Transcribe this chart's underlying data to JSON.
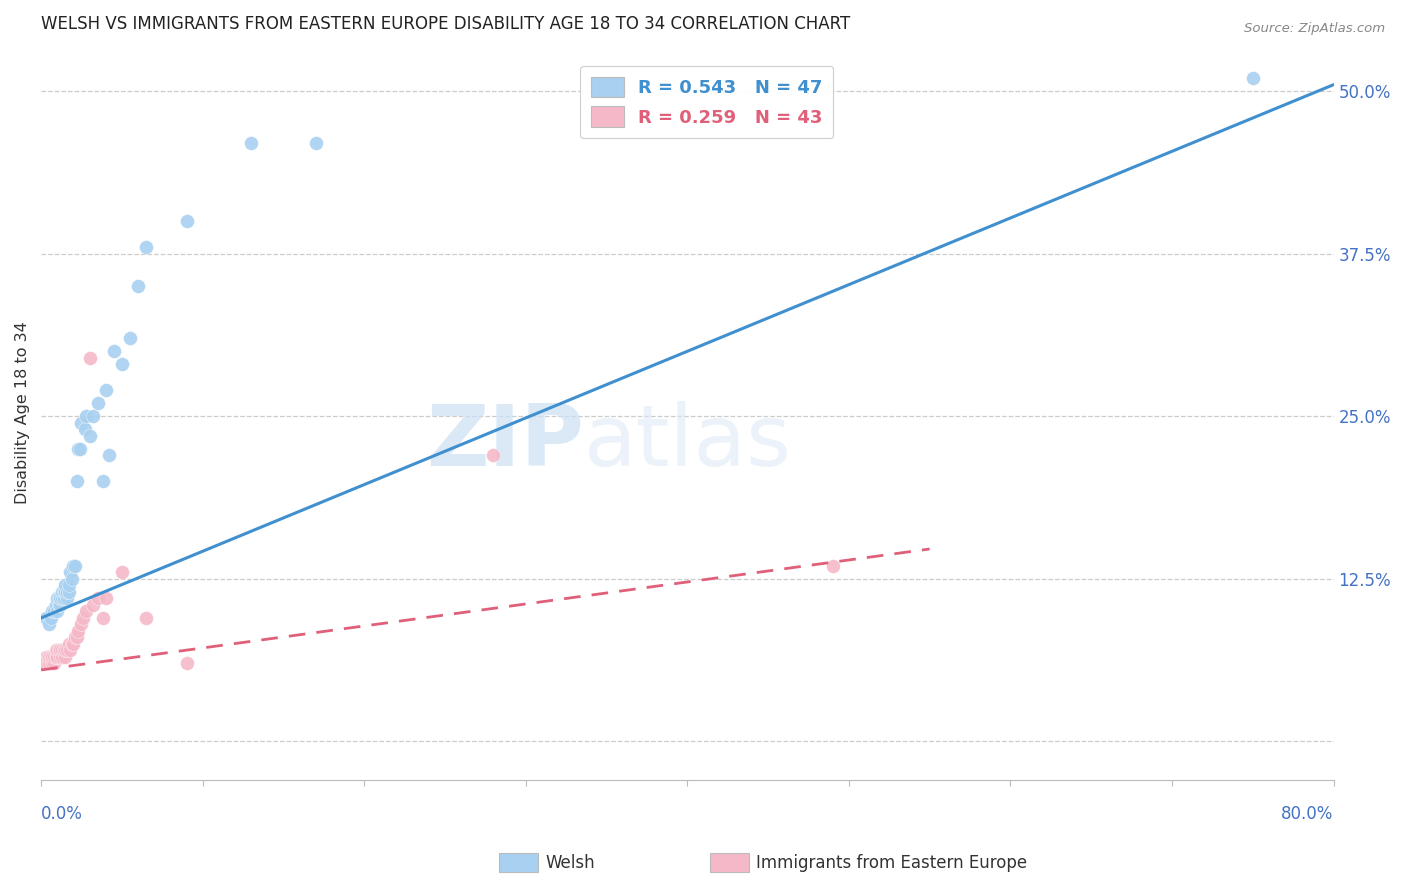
{
  "title": "WELSH VS IMMIGRANTS FROM EASTERN EUROPE DISABILITY AGE 18 TO 34 CORRELATION CHART",
  "source": "Source: ZipAtlas.com",
  "ylabel": "Disability Age 18 to 34",
  "yticks": [
    0.0,
    0.125,
    0.25,
    0.375,
    0.5
  ],
  "ytick_labels": [
    "",
    "12.5%",
    "25.0%",
    "37.5%",
    "50.0%"
  ],
  "xmin": 0.0,
  "xmax": 0.8,
  "ymin": -0.03,
  "ymax": 0.535,
  "welsh_R": 0.543,
  "welsh_N": 47,
  "immigrant_R": 0.259,
  "immigrant_N": 43,
  "welsh_color": "#a8d0f0",
  "immigrant_color": "#f5b8c8",
  "welsh_line_color": "#4090d0",
  "immigrant_line_color": "#e0607a",
  "watermark_zip": "ZIP",
  "watermark_atlas": "atlas",
  "legend_welsh_label": "Welsh",
  "legend_immigrant_label": "Immigrants from Eastern Europe",
  "welsh_scatter_x": [
    0.003,
    0.005,
    0.006,
    0.007,
    0.008,
    0.009,
    0.01,
    0.01,
    0.011,
    0.011,
    0.012,
    0.012,
    0.013,
    0.013,
    0.014,
    0.014,
    0.015,
    0.015,
    0.016,
    0.016,
    0.017,
    0.017,
    0.018,
    0.019,
    0.02,
    0.021,
    0.022,
    0.023,
    0.024,
    0.025,
    0.027,
    0.028,
    0.03,
    0.032,
    0.035,
    0.038,
    0.04,
    0.042,
    0.045,
    0.05,
    0.055,
    0.06,
    0.065,
    0.09,
    0.13,
    0.17,
    0.75
  ],
  "welsh_scatter_y": [
    0.095,
    0.09,
    0.095,
    0.1,
    0.1,
    0.105,
    0.1,
    0.11,
    0.105,
    0.11,
    0.105,
    0.11,
    0.11,
    0.115,
    0.11,
    0.115,
    0.115,
    0.12,
    0.11,
    0.115,
    0.115,
    0.12,
    0.13,
    0.125,
    0.135,
    0.135,
    0.2,
    0.225,
    0.225,
    0.245,
    0.24,
    0.25,
    0.235,
    0.25,
    0.26,
    0.2,
    0.27,
    0.22,
    0.3,
    0.29,
    0.31,
    0.35,
    0.38,
    0.4,
    0.46,
    0.46,
    0.51
  ],
  "immigrant_scatter_x": [
    0.002,
    0.003,
    0.004,
    0.005,
    0.005,
    0.006,
    0.007,
    0.007,
    0.008,
    0.008,
    0.009,
    0.009,
    0.01,
    0.01,
    0.011,
    0.012,
    0.012,
    0.013,
    0.013,
    0.014,
    0.015,
    0.015,
    0.016,
    0.017,
    0.018,
    0.019,
    0.02,
    0.021,
    0.022,
    0.023,
    0.025,
    0.026,
    0.028,
    0.03,
    0.032,
    0.035,
    0.038,
    0.04,
    0.05,
    0.065,
    0.09,
    0.28,
    0.49
  ],
  "immigrant_scatter_y": [
    0.06,
    0.065,
    0.065,
    0.06,
    0.065,
    0.065,
    0.06,
    0.065,
    0.06,
    0.065,
    0.065,
    0.07,
    0.065,
    0.07,
    0.07,
    0.065,
    0.07,
    0.065,
    0.07,
    0.07,
    0.065,
    0.07,
    0.07,
    0.075,
    0.07,
    0.075,
    0.075,
    0.08,
    0.08,
    0.085,
    0.09,
    0.095,
    0.1,
    0.295,
    0.105,
    0.11,
    0.095,
    0.11,
    0.13,
    0.095,
    0.06,
    0.22,
    0.135
  ],
  "welsh_line_x0": 0.0,
  "welsh_line_y0": 0.095,
  "welsh_line_x1": 0.8,
  "welsh_line_y1": 0.505,
  "imm_line_x0": 0.0,
  "imm_line_y0": 0.055,
  "imm_line_x1": 0.55,
  "imm_line_y1": 0.148
}
